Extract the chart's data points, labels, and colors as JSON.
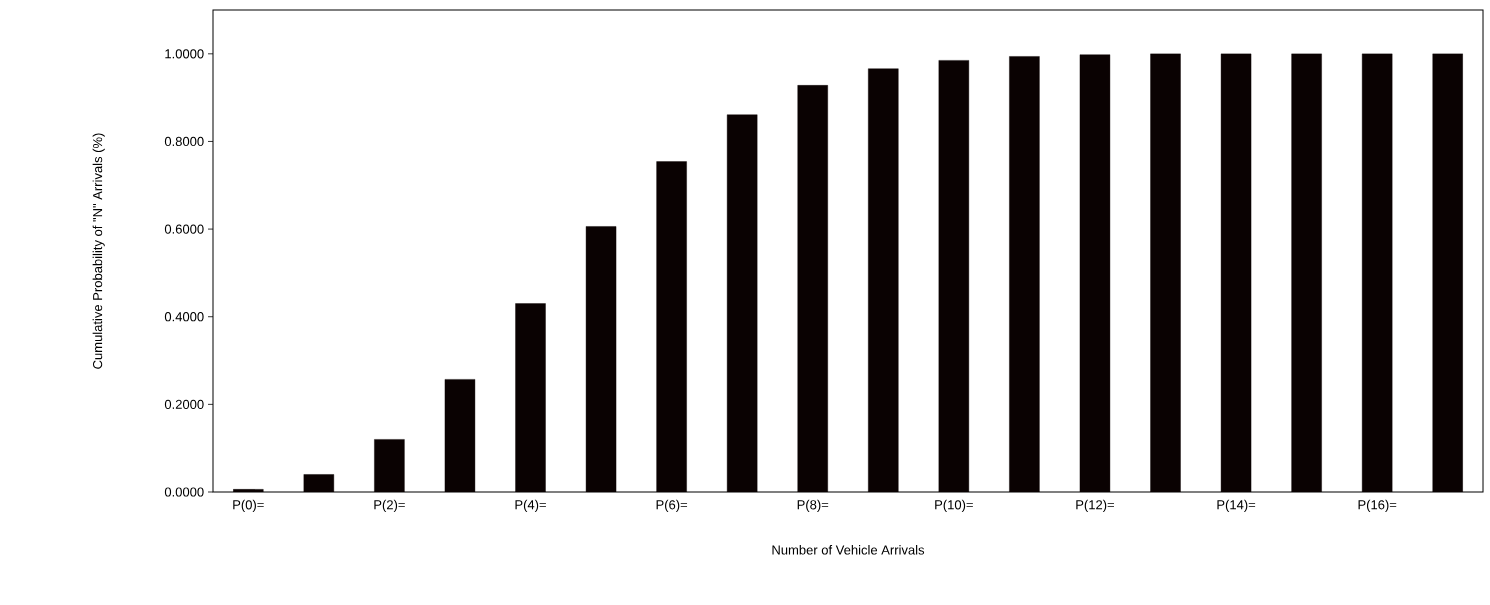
{
  "chart_data": {
    "type": "bar",
    "xlabel": "Number of Vehicle Arrivals",
    "ylabel": "Cumulative Probability of \"N\" Arrivals (%)",
    "categories": [
      "P(0)=",
      null,
      "P(2)=",
      null,
      "P(4)=",
      null,
      "P(6)=",
      null,
      "P(8)=",
      null,
      "P(10)=",
      null,
      "P(12)=",
      null,
      "P(14)=",
      null,
      "P(16)=",
      null
    ],
    "values": [
      0.006,
      0.04,
      0.12,
      0.257,
      0.43,
      0.606,
      0.754,
      0.861,
      0.928,
      0.966,
      0.985,
      0.994,
      0.998,
      1.0,
      1.0,
      1.0,
      1.0,
      1.0
    ],
    "color": "#0a0202",
    "ylim": [
      0,
      1.1
    ],
    "yticks": [
      {
        "value": 0,
        "label": "0.0000"
      },
      {
        "value": 0.2,
        "label": "0.2000"
      },
      {
        "value": 0.4,
        "label": "0.4000"
      },
      {
        "value": 0.6,
        "label": "0.6000"
      },
      {
        "value": 0.8,
        "label": "0.8000"
      },
      {
        "value": 1.0,
        "label": "1.0000"
      }
    ],
    "grid": false
  }
}
